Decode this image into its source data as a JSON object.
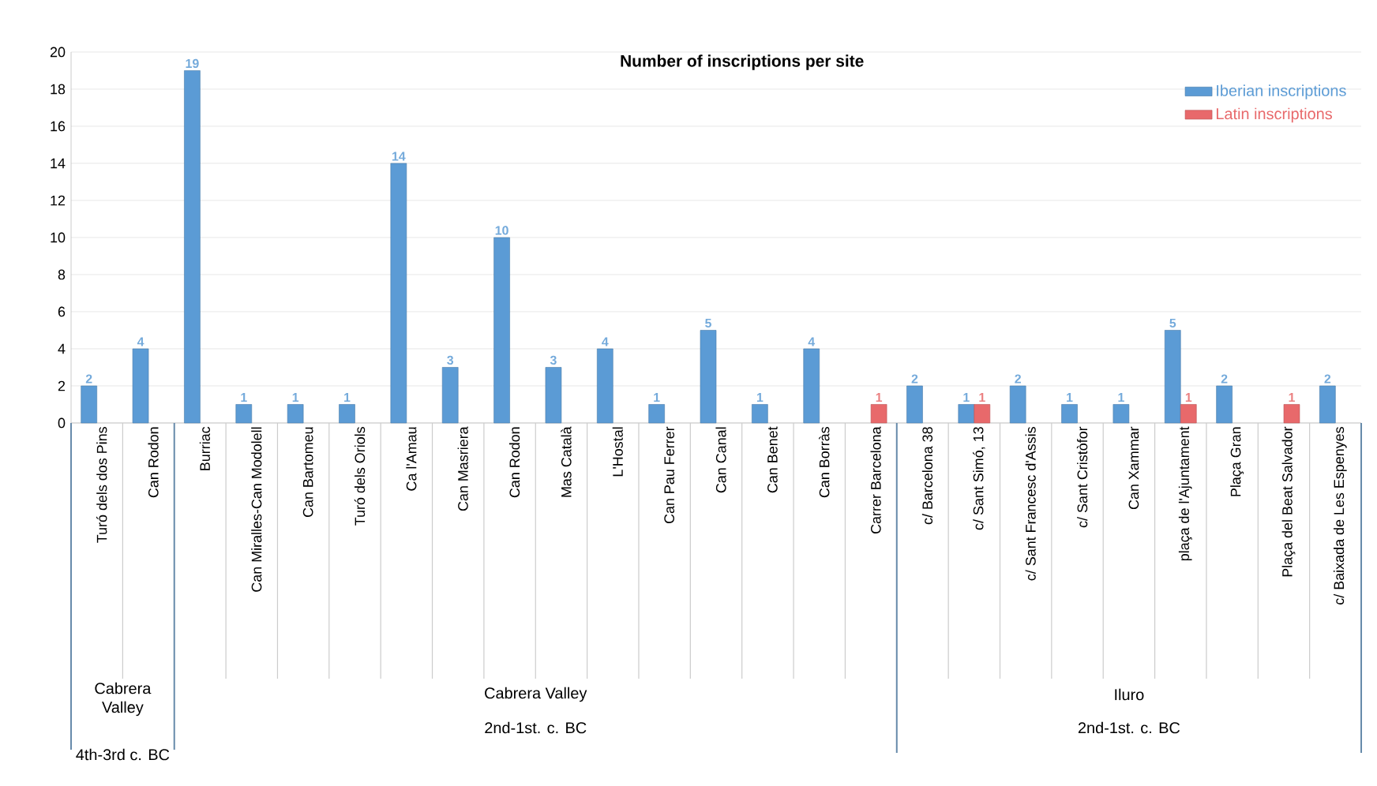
{
  "chart_data": {
    "type": "bar",
    "title": "Number of inscriptions per site",
    "categories": [
      "Turó dels dos Pins",
      "Can Rodon",
      "Burriac",
      "Can Miralles-Can Modolell",
      "Can Bartomeu",
      "Turó dels Oriols",
      "Ca l'Amau",
      "Can Masriera",
      "Can Rodon",
      "Mas Català",
      "L'Hostal",
      "Can Pau Ferrer",
      "Can Canal",
      "Can Benet",
      "Can Borràs",
      "Carrer Barcelona",
      "c/ Barcelona 38",
      "c/ Sant Simó, 13",
      "c/ Sant Francesc d'Assis",
      "c/ Sant Cristòfor",
      "Can Xammar",
      "plaça de l'Ajuntament",
      "Plaça Gran",
      "Plaça del Beat Salvador",
      "c/ Baixada de Les Espenyes"
    ],
    "series": [
      {
        "name": "Iberian inscriptions",
        "color": "#5b9bd5",
        "values": [
          2,
          4,
          19,
          1,
          1,
          1,
          14,
          3,
          10,
          3,
          4,
          1,
          5,
          1,
          4,
          null,
          2,
          1,
          2,
          1,
          1,
          5,
          2,
          null,
          2
        ]
      },
      {
        "name": "Latin inscriptions",
        "color": "#e8696b",
        "values": [
          null,
          null,
          null,
          null,
          null,
          null,
          null,
          null,
          null,
          null,
          null,
          null,
          null,
          null,
          null,
          1,
          null,
          1,
          null,
          null,
          null,
          1,
          null,
          1,
          null
        ]
      }
    ],
    "ylim": [
      0,
      20
    ],
    "yticks": [
      0,
      2,
      4,
      6,
      8,
      10,
      12,
      14,
      16,
      18,
      20
    ],
    "grid": "y",
    "legend": "top right",
    "data_labels": true,
    "annotations": [
      "Cabrera Valley",
      "4th-3rd c. BC",
      "Cabrera Valley",
      "2nd-1st. c. BC",
      "Iluro",
      "2nd-1st. c. BC"
    ]
  }
}
